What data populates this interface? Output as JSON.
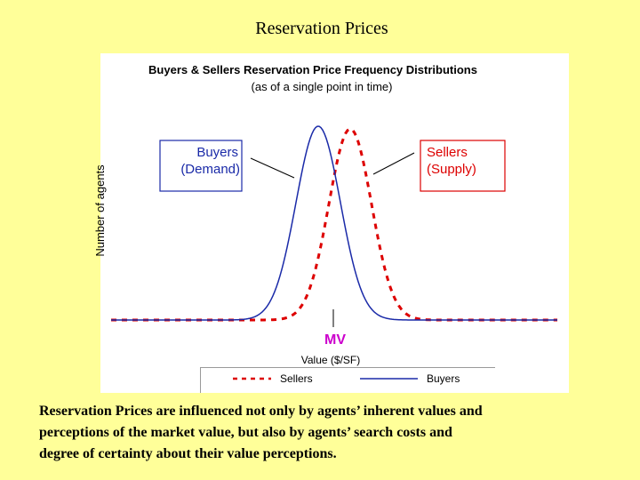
{
  "slide": {
    "title": "Reservation Prices",
    "chart": {
      "title": "Buyers & Sellers Reservation Price Frequency Distributions",
      "subtitle": "(as of a single point in time)",
      "y_label": "Number of agents",
      "x_label": "Value ($/SF)",
      "marker": "MV",
      "buyers_label": [
        "Buyers",
        "(Demand)"
      ],
      "sellers_label": [
        "Sellers",
        "(Supply)"
      ],
      "legend": [
        "Sellers",
        "Buyers"
      ]
    },
    "caption": [
      "Reservation Prices are influenced not only by agents’ inherent values and",
      "perceptions of the market value, but also by agents’ search costs and",
      "degree of certainty about their value perceptions."
    ]
  }
}
